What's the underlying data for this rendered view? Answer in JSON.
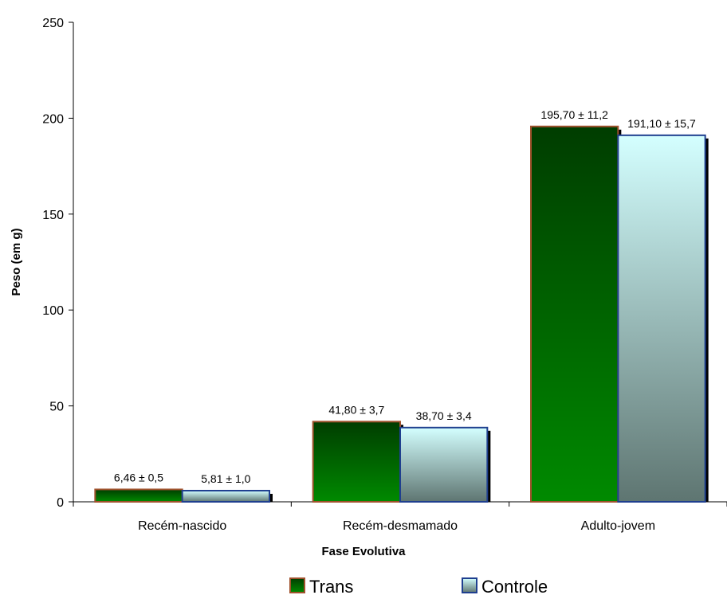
{
  "chart_data": {
    "type": "bar",
    "title": "",
    "xlabel": "Fase Evolutiva",
    "ylabel": "Peso (em g)",
    "ylim": [
      0,
      250
    ],
    "yticks": [
      "0",
      "50",
      "100",
      "150",
      "200",
      "250"
    ],
    "categories": [
      "Recém-nascido",
      "Recém-desmamado",
      "Adulto-jovem"
    ],
    "series": [
      {
        "name": "Trans",
        "values": [
          6.46,
          41.8,
          195.7
        ],
        "labels": [
          "6,46 ± 0,5",
          "41,80 ± 3,7",
          "195,70 ± 11,2"
        ],
        "color_top": "#003d00",
        "color_bottom": "#008a00",
        "border": "#a0522d"
      },
      {
        "name": "Controle",
        "values": [
          5.81,
          38.7,
          191.1
        ],
        "labels": [
          "5,81 ± 1,0",
          "38,70 ± 3,4",
          "191,10 ± 15,7"
        ],
        "color_top": "#d4ffff",
        "color_bottom": "#5e7571",
        "border": "#1f3f8f"
      }
    ],
    "legend_position": "bottom",
    "grid": false
  }
}
